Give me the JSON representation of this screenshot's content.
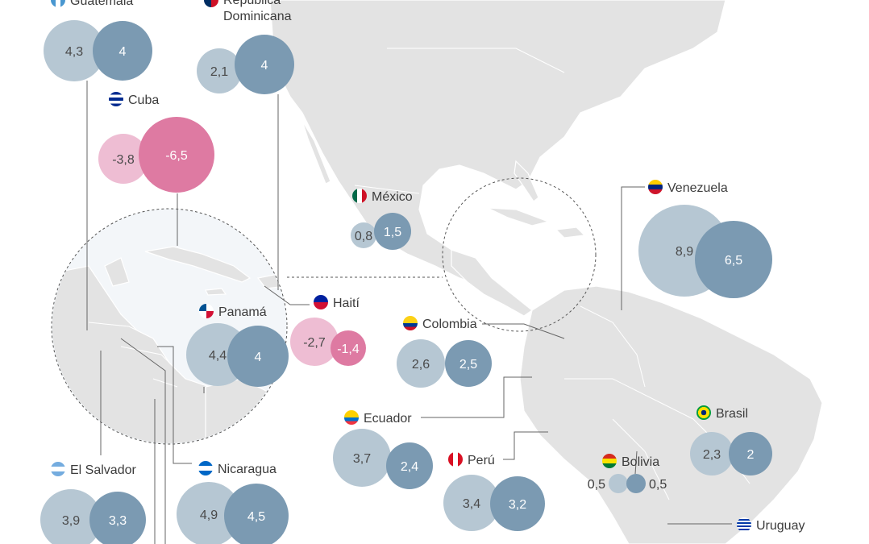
{
  "colors": {
    "land": "#e3e3e3",
    "light_blue": "#b6c7d3",
    "dark_blue": "#7b9ab2",
    "light_pink": "#eebdd3",
    "dark_pink": "#de7aa2",
    "leader": "#666666"
  },
  "countries": [
    {
      "name": "Guatemala",
      "v1": "4,3",
      "v2": "4",
      "flag": "guatemala-flag-icon"
    },
    {
      "name": "República Dominicana",
      "v1": "2,1",
      "v2": "4",
      "flag": "dominican-republic-flag-icon"
    },
    {
      "name": "Cuba",
      "v1": "-3,8",
      "v2": "-6,5",
      "flag": "cuba-flag-icon"
    },
    {
      "name": "México",
      "v1": "0,8",
      "v2": "1,5",
      "flag": "mexico-flag-icon"
    },
    {
      "name": "Venezuela",
      "v1": "8,9",
      "v2": "6,5",
      "flag": "venezuela-flag-icon"
    },
    {
      "name": "Panamá",
      "v1": "4,4",
      "v2": "4",
      "flag": "panama-flag-icon"
    },
    {
      "name": "Haití",
      "v1": "-2,7",
      "v2": "-1,4",
      "flag": "haiti-flag-icon"
    },
    {
      "name": "Colombia",
      "v1": "2,6",
      "v2": "2,5",
      "flag": "colombia-flag-icon"
    },
    {
      "name": "Ecuador",
      "v1": "3,7",
      "v2": "2,4",
      "flag": "ecuador-flag-icon"
    },
    {
      "name": "Perú",
      "v1": "3,4",
      "v2": "3,2",
      "flag": "peru-flag-icon"
    },
    {
      "name": "Bolivia",
      "v1": "0,5",
      "v2": "0,5",
      "flag": "bolivia-flag-icon"
    },
    {
      "name": "Brasil",
      "v1": "2,3",
      "v2": "2",
      "flag": "brazil-flag-icon"
    },
    {
      "name": "El Salvador",
      "v1": "3,9",
      "v2": "3,3",
      "flag": "argentina-flag-icon"
    },
    {
      "name": "Nicaragua",
      "v1": "4,9",
      "v2": "4,5",
      "flag": "nicaragua-flag-icon"
    },
    {
      "name": "Uruguay",
      "v1": "",
      "v2": "",
      "flag": "uruguay-flag-icon"
    }
  ]
}
